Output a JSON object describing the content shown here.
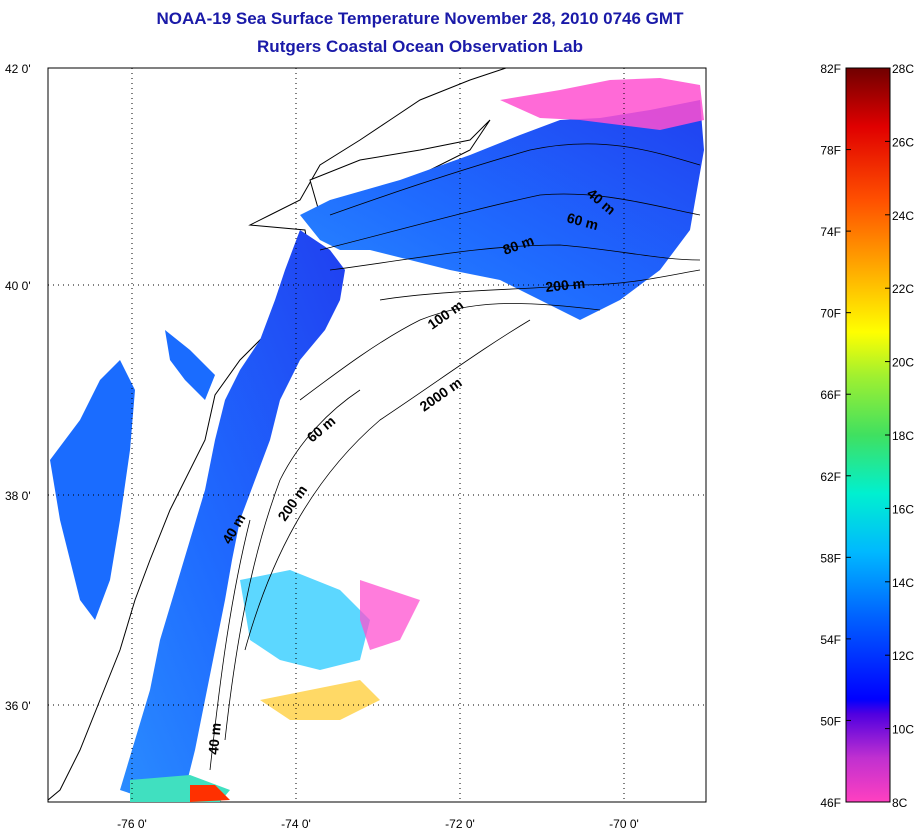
{
  "header": {
    "title": "NOAA-19 Sea Surface Temperature November 28, 2010 0746 GMT",
    "subtitle": "Rutgers Coastal Ocean Observation Lab"
  },
  "map": {
    "lat_labels": [
      "42 0'",
      "40 0'",
      "38 0'",
      "36 0'"
    ],
    "lon_labels": [
      "-76 0'",
      "-74 0'",
      "-72 0'",
      "-70 0'"
    ],
    "contour_labels": [
      "40 m",
      "60 m",
      "80 m",
      "200 m",
      "100 m",
      "2000 m",
      "60 m",
      "200 m",
      "40 m",
      "40 m"
    ]
  },
  "colorbar": {
    "fahrenheit": [
      "82F",
      "78F",
      "74F",
      "70F",
      "66F",
      "62F",
      "58F",
      "54F",
      "50F",
      "46F"
    ],
    "celsius": [
      "28C",
      "26C",
      "24C",
      "22C",
      "20C",
      "18C",
      "16C",
      "14C",
      "12C",
      "10C",
      "8C"
    ],
    "colors": [
      "#7a0000",
      "#d00000",
      "#ff5000",
      "#ffa000",
      "#ffff00",
      "#7cfc00",
      "#00e5a0",
      "#00c8ff",
      "#0050ff",
      "#0000e0",
      "#9000d8",
      "#ff40c0"
    ]
  }
}
